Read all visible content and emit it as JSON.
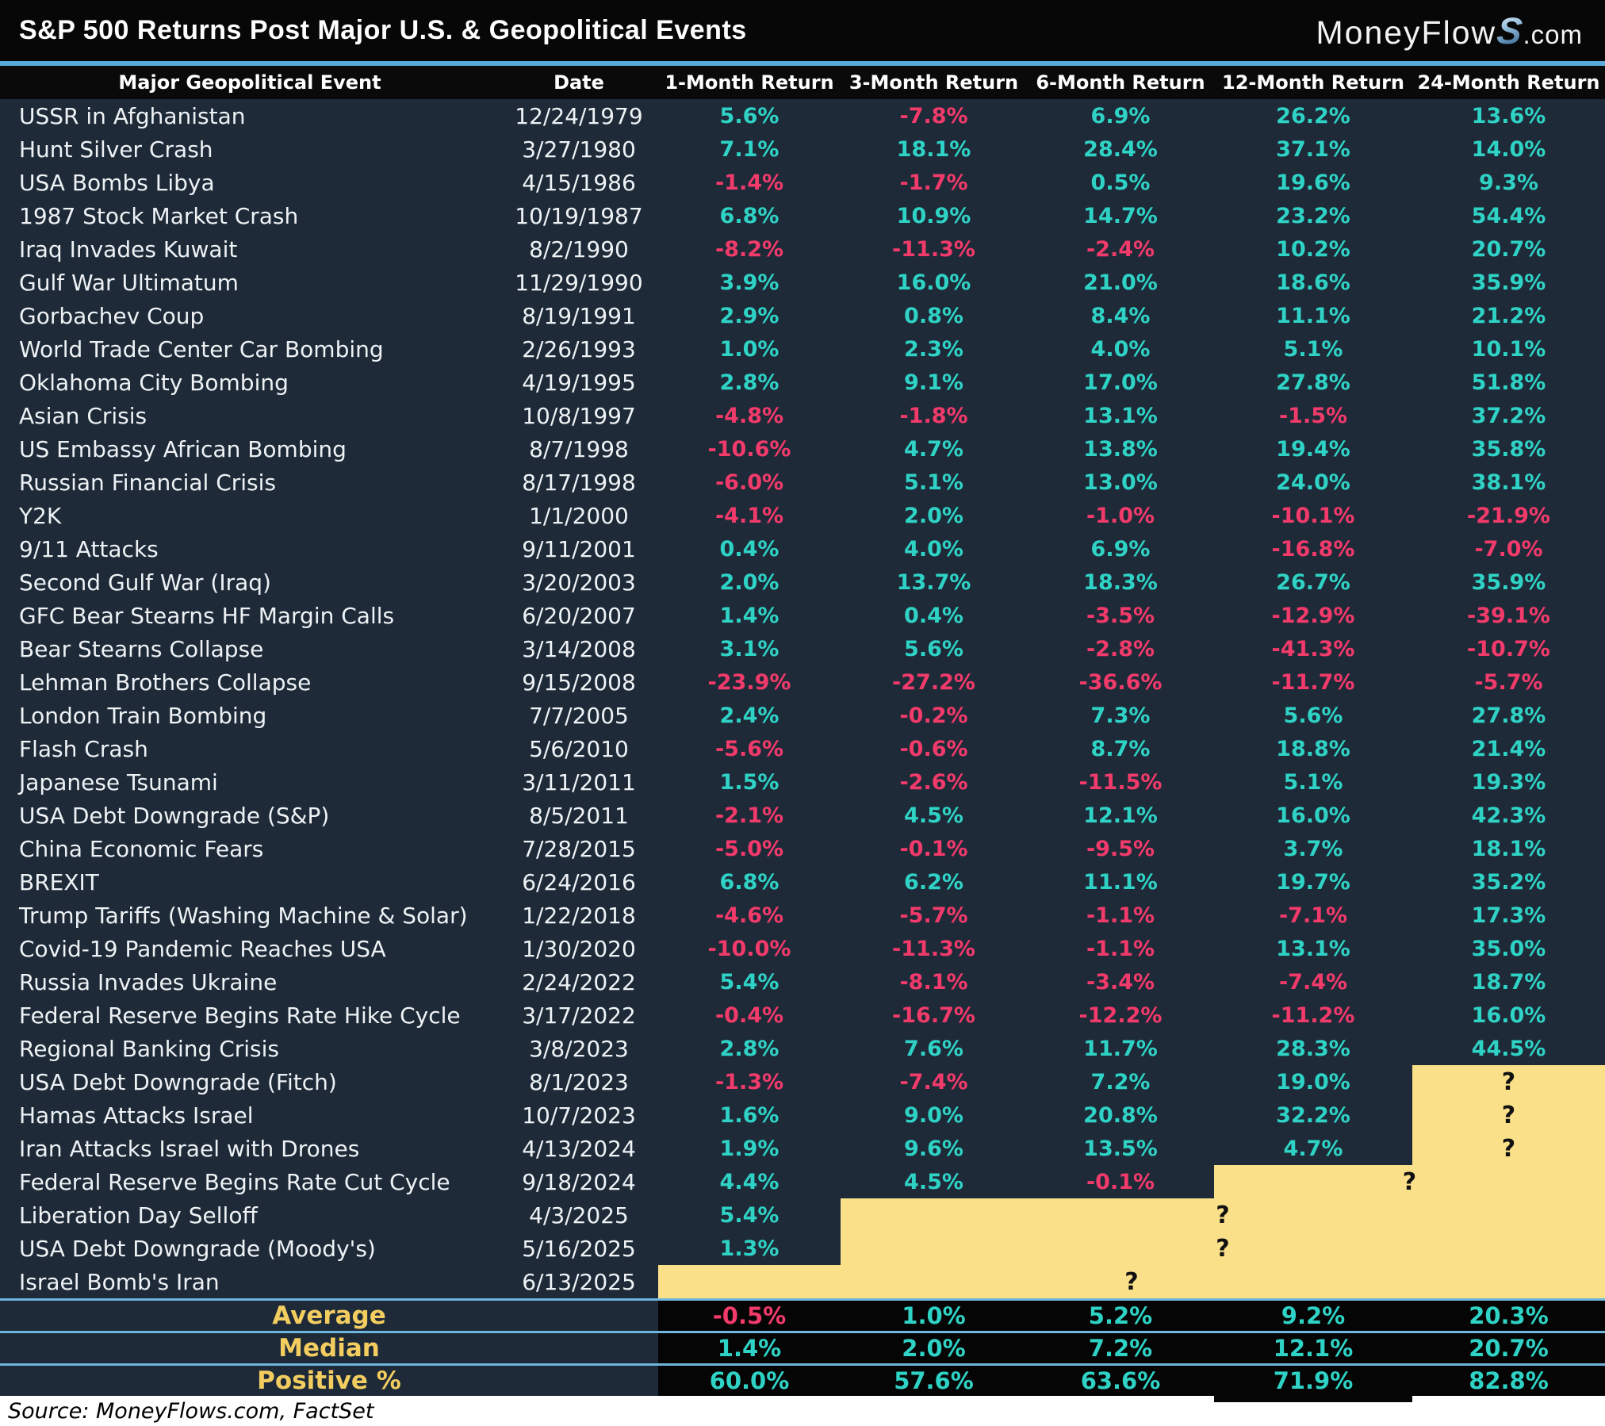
{
  "header": {
    "title": "S&P 500 Returns Post Major U.S. & Geopolitical Events",
    "logo": {
      "text": "MoneyFlow",
      "accent": "S",
      "suffix": ".com"
    }
  },
  "colors": {
    "positive": "#2fd3c6",
    "negative": "#f23a6b",
    "pending_bg": "#fae189",
    "accent_blue": "#58abd8",
    "summary_label": "#f3cd5f",
    "row_bg": "#1e2a38",
    "header_bg": "#0a0a0a"
  },
  "chart_data": {
    "type": "table",
    "title": "S&P 500 Returns Post Major U.S. & Geopolitical Events",
    "columns": [
      "Major Geopolitical Event",
      "Date",
      "1-Month Return",
      "3-Month Return",
      "6-Month Return",
      "12-Month Return",
      "24-Month Return"
    ],
    "unknown_marker": "?",
    "rows": [
      {
        "event": "USSR in Afghanistan",
        "date": "12/24/1979",
        "values": [
          "5.6%",
          "-7.8%",
          "6.9%",
          "26.2%",
          "13.6%"
        ]
      },
      {
        "event": "Hunt Silver Crash",
        "date": "3/27/1980",
        "values": [
          "7.1%",
          "18.1%",
          "28.4%",
          "37.1%",
          "14.0%"
        ]
      },
      {
        "event": "USA Bombs Libya",
        "date": "4/15/1986",
        "values": [
          "-1.4%",
          "-1.7%",
          "0.5%",
          "19.6%",
          "9.3%"
        ]
      },
      {
        "event": "1987 Stock Market Crash",
        "date": "10/19/1987",
        "values": [
          "6.8%",
          "10.9%",
          "14.7%",
          "23.2%",
          "54.4%"
        ]
      },
      {
        "event": "Iraq Invades Kuwait",
        "date": "8/2/1990",
        "values": [
          "-8.2%",
          "-11.3%",
          "-2.4%",
          "10.2%",
          "20.7%"
        ]
      },
      {
        "event": "Gulf War Ultimatum",
        "date": "11/29/1990",
        "values": [
          "3.9%",
          "16.0%",
          "21.0%",
          "18.6%",
          "35.9%"
        ]
      },
      {
        "event": "Gorbachev Coup",
        "date": "8/19/1991",
        "values": [
          "2.9%",
          "0.8%",
          "8.4%",
          "11.1%",
          "21.2%"
        ]
      },
      {
        "event": "World Trade Center Car Bombing",
        "date": "2/26/1993",
        "values": [
          "1.0%",
          "2.3%",
          "4.0%",
          "5.1%",
          "10.1%"
        ]
      },
      {
        "event": "Oklahoma City Bombing",
        "date": "4/19/1995",
        "values": [
          "2.8%",
          "9.1%",
          "17.0%",
          "27.8%",
          "51.8%"
        ]
      },
      {
        "event": "Asian Crisis",
        "date": "10/8/1997",
        "values": [
          "-4.8%",
          "-1.8%",
          "13.1%",
          "-1.5%",
          "37.2%"
        ]
      },
      {
        "event": "US Embassy African Bombing",
        "date": "8/7/1998",
        "values": [
          "-10.6%",
          "4.7%",
          "13.8%",
          "19.4%",
          "35.8%"
        ]
      },
      {
        "event": "Russian Financial Crisis",
        "date": "8/17/1998",
        "values": [
          "-6.0%",
          "5.1%",
          "13.0%",
          "24.0%",
          "38.1%"
        ]
      },
      {
        "event": "Y2K",
        "date": "1/1/2000",
        "values": [
          "-4.1%",
          "2.0%",
          "-1.0%",
          "-10.1%",
          "-21.9%"
        ]
      },
      {
        "event": "9/11 Attacks",
        "date": "9/11/2001",
        "values": [
          "0.4%",
          "4.0%",
          "6.9%",
          "-16.8%",
          "-7.0%"
        ]
      },
      {
        "event": "Second Gulf War (Iraq)",
        "date": "3/20/2003",
        "values": [
          "2.0%",
          "13.7%",
          "18.3%",
          "26.7%",
          "35.9%"
        ]
      },
      {
        "event": "GFC Bear Stearns HF Margin Calls",
        "date": "6/20/2007",
        "values": [
          "1.4%",
          "0.4%",
          "-3.5%",
          "-12.9%",
          "-39.1%"
        ]
      },
      {
        "event": "Bear Stearns Collapse",
        "date": "3/14/2008",
        "values": [
          "3.1%",
          "5.6%",
          "-2.8%",
          "-41.3%",
          "-10.7%"
        ]
      },
      {
        "event": "Lehman Brothers Collapse",
        "date": "9/15/2008",
        "values": [
          "-23.9%",
          "-27.2%",
          "-36.6%",
          "-11.7%",
          "-5.7%"
        ]
      },
      {
        "event": "London Train Bombing",
        "date": "7/7/2005",
        "values": [
          "2.4%",
          "-0.2%",
          "7.3%",
          "5.6%",
          "27.8%"
        ]
      },
      {
        "event": "Flash Crash",
        "date": "5/6/2010",
        "values": [
          "-5.6%",
          "-0.6%",
          "8.7%",
          "18.8%",
          "21.4%"
        ]
      },
      {
        "event": "Japanese Tsunami",
        "date": "3/11/2011",
        "values": [
          "1.5%",
          "-2.6%",
          "-11.5%",
          "5.1%",
          "19.3%"
        ]
      },
      {
        "event": "USA Debt Downgrade (S&P)",
        "date": "8/5/2011",
        "values": [
          "-2.1%",
          "4.5%",
          "12.1%",
          "16.0%",
          "42.3%"
        ]
      },
      {
        "event": "China Economic Fears",
        "date": "7/28/2015",
        "values": [
          "-5.0%",
          "-0.1%",
          "-9.5%",
          "3.7%",
          "18.1%"
        ]
      },
      {
        "event": "BREXIT",
        "date": "6/24/2016",
        "values": [
          "6.8%",
          "6.2%",
          "11.1%",
          "19.7%",
          "35.2%"
        ]
      },
      {
        "event": "Trump Tariffs (Washing Machine & Solar)",
        "date": "1/22/2018",
        "values": [
          "-4.6%",
          "-5.7%",
          "-1.1%",
          "-7.1%",
          "17.3%"
        ]
      },
      {
        "event": "Covid-19 Pandemic Reaches USA",
        "date": "1/30/2020",
        "values": [
          "-10.0%",
          "-11.3%",
          "-1.1%",
          "13.1%",
          "35.0%"
        ]
      },
      {
        "event": "Russia Invades Ukraine",
        "date": "2/24/2022",
        "values": [
          "5.4%",
          "-8.1%",
          "-3.4%",
          "-7.4%",
          "18.7%"
        ]
      },
      {
        "event": "Federal Reserve Begins Rate Hike Cycle",
        "date": "3/17/2022",
        "values": [
          "-0.4%",
          "-16.7%",
          "-12.2%",
          "-11.2%",
          "16.0%"
        ]
      },
      {
        "event": "Regional Banking Crisis",
        "date": "3/8/2023",
        "values": [
          "2.8%",
          "7.6%",
          "11.7%",
          "28.3%",
          "44.5%"
        ]
      },
      {
        "event": "USA Debt Downgrade (Fitch)",
        "date": "8/1/2023",
        "values": [
          "-1.3%",
          "-7.4%",
          "7.2%",
          "19.0%",
          null
        ]
      },
      {
        "event": "Hamas Attacks Israel",
        "date": "10/7/2023",
        "values": [
          "1.6%",
          "9.0%",
          "20.8%",
          "32.2%",
          null
        ]
      },
      {
        "event": "Iran Attacks Israel with Drones",
        "date": "4/13/2024",
        "values": [
          "1.9%",
          "9.6%",
          "13.5%",
          "4.7%",
          null
        ]
      },
      {
        "event": "Federal Reserve Begins Rate Cut Cycle",
        "date": "9/18/2024",
        "values": [
          "4.4%",
          "4.5%",
          "-0.1%",
          null,
          null
        ]
      },
      {
        "event": "Liberation Day Selloff",
        "date": "4/3/2025",
        "values": [
          "5.4%",
          null,
          null,
          null,
          null
        ]
      },
      {
        "event": "USA Debt Downgrade (Moody's)",
        "date": "5/16/2025",
        "values": [
          "1.3%",
          null,
          null,
          null,
          null
        ]
      },
      {
        "event": "Israel Bomb's Iran",
        "date": "6/13/2025",
        "values": [
          null,
          null,
          null,
          null,
          null
        ]
      }
    ],
    "summary": [
      {
        "label": "Average",
        "values": [
          "-0.5%",
          "1.0%",
          "5.2%",
          "9.2%",
          "20.3%"
        ]
      },
      {
        "label": "Median",
        "values": [
          "1.4%",
          "2.0%",
          "7.2%",
          "12.1%",
          "20.7%"
        ]
      },
      {
        "label": "Positive %",
        "values": [
          "60.0%",
          "57.6%",
          "63.6%",
          "71.9%",
          "82.8%"
        ]
      }
    ]
  },
  "footer": {
    "source": "Source: MoneyFlows.com, FactSet"
  }
}
